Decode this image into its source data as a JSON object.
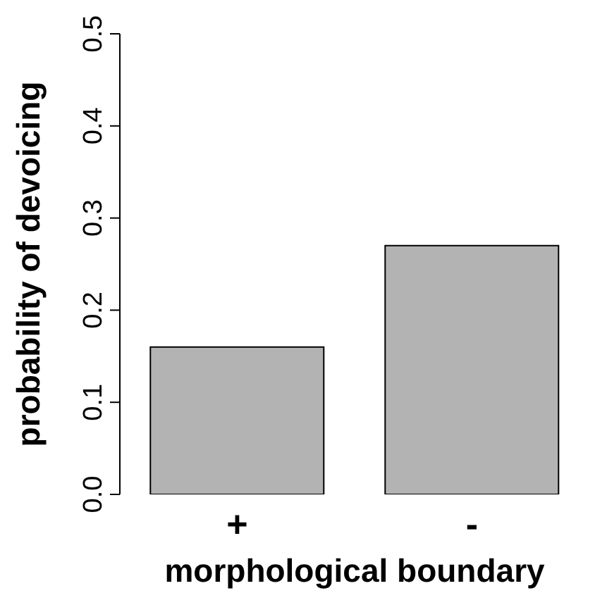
{
  "chart_data": {
    "type": "bar",
    "xlabel": "morphological boundary",
    "ylabel": "probability of devoicing",
    "categories": [
      "+",
      "-"
    ],
    "values": [
      0.16,
      0.27
    ],
    "color": "#b3b3b3",
    "ylim": [
      0,
      0.5
    ],
    "yticks": [
      {
        "value": 0,
        "label": "0.0"
      },
      {
        "value": 0.1,
        "label": "0.1"
      },
      {
        "value": 0.2,
        "label": "0.2"
      },
      {
        "value": 0.3,
        "label": "0.3"
      },
      {
        "value": 0.4,
        "label": "0.4"
      },
      {
        "value": 0.5,
        "label": "0.5"
      }
    ],
    "grid": false,
    "legend": false
  }
}
